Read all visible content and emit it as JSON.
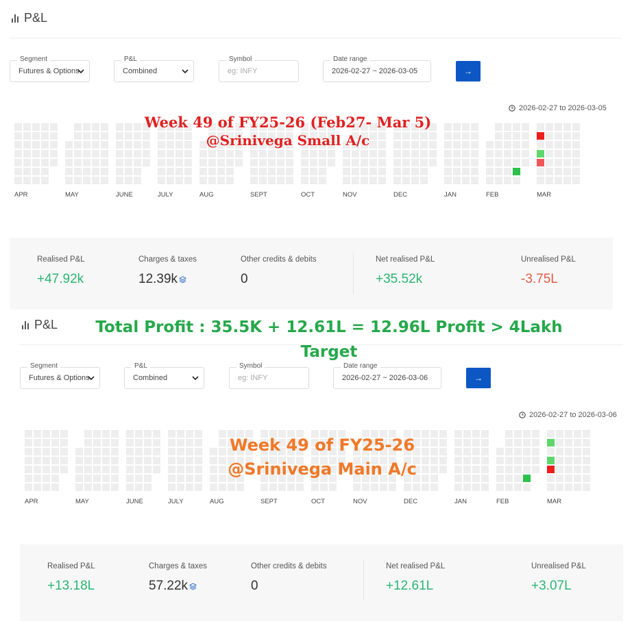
{
  "panels": [
    {
      "title": "P&L",
      "filters": {
        "segment": {
          "label": "Segment",
          "value": "Futures & Options"
        },
        "pl": {
          "label": "P&L",
          "value": "Combined"
        },
        "symbol": {
          "label": "Symbol",
          "placeholder": "eg: INFY"
        },
        "date_range": {
          "label": "Date range",
          "value": "2026-02-27 ~ 2026-03-05"
        },
        "go_label": "→"
      },
      "range_note": "2026-02-27 to 2026-03-05",
      "months": [
        "APR",
        "MAY",
        "JUNE",
        "JULY",
        "AUG",
        "SEPT",
        "OCT",
        "NOV",
        "DEC",
        "JAN",
        "FEB",
        "MAR"
      ],
      "summary": {
        "realised": {
          "label": "Realised P&L",
          "value": "+47.92k"
        },
        "charges": {
          "label": "Charges & taxes",
          "value": "12.39k"
        },
        "credits": {
          "label": "Other credits & debits",
          "value": "0"
        },
        "net": {
          "label": "Net realised P&L",
          "value": "+35.52k"
        },
        "unrealised": {
          "label": "Unrealised P&L",
          "value": "-3.75L"
        }
      },
      "colors": {
        "profit": "#2bc24a",
        "loss": "#ee1c1c",
        "loss_light": "#f25757",
        "profit_light": "#5fd66a"
      }
    },
    {
      "title": "P&L",
      "filters": {
        "segment": {
          "label": "Segment",
          "value": "Futures & Options"
        },
        "pl": {
          "label": "P&L",
          "value": "Combined"
        },
        "symbol": {
          "label": "Symbol",
          "placeholder": "eg: INFY"
        },
        "date_range": {
          "label": "Date range",
          "value": "2026-02-27 ~ 2026-03-06"
        },
        "go_label": "→"
      },
      "range_note": "2026-02-27 to 2026-03-06",
      "months": [
        "APR",
        "MAY",
        "JUNE",
        "JULY",
        "AUG",
        "SEPT",
        "OCT",
        "NOV",
        "DEC",
        "JAN",
        "FEB",
        "MAR"
      ],
      "summary": {
        "realised": {
          "label": "Realised P&L",
          "value": "+13.18L"
        },
        "charges": {
          "label": "Charges & taxes",
          "value": "57.22k"
        },
        "credits": {
          "label": "Other credits & debits",
          "value": "0"
        },
        "net": {
          "label": "Net realised P&L",
          "value": "+12.61L"
        },
        "unrealised": {
          "label": "Unrealised P&L",
          "value": "+3.07L"
        }
      }
    }
  ],
  "overlays": {
    "top_line1": "Week 49 of FY25-26 (Feb27- Mar 5)",
    "top_line2": "@Srinivega Small A/c",
    "total_line1": "Total Profit : 35.5K + 12.61L = 12.96L Profit > 4Lakh",
    "total_line2": "Target",
    "bottom_line1": "Week 49 of FY25-26",
    "bottom_line2": "@Srinivega Main A/c"
  }
}
